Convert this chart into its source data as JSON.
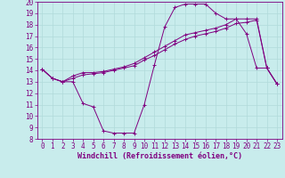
{
  "xlabel": "Windchill (Refroidissement éolien,°C)",
  "background_color": "#c8ecec",
  "line_color": "#800080",
  "xlim": [
    -0.5,
    23.5
  ],
  "ylim": [
    8,
    20
  ],
  "xticks": [
    0,
    1,
    2,
    3,
    4,
    5,
    6,
    7,
    8,
    9,
    10,
    11,
    12,
    13,
    14,
    15,
    16,
    17,
    18,
    19,
    20,
    21,
    22,
    23
  ],
  "yticks": [
    8,
    9,
    10,
    11,
    12,
    13,
    14,
    15,
    16,
    17,
    18,
    19,
    20
  ],
  "line1_x": [
    0,
    1,
    2,
    3,
    4,
    5,
    6,
    7,
    8,
    9,
    10,
    11,
    12,
    13,
    14,
    15,
    16,
    17,
    18,
    19,
    20,
    21,
    22,
    23
  ],
  "line1_y": [
    14.1,
    13.3,
    13.0,
    13.0,
    11.1,
    10.8,
    8.7,
    8.5,
    8.5,
    8.5,
    11.0,
    14.5,
    17.8,
    19.5,
    19.8,
    19.8,
    19.8,
    19.0,
    18.5,
    18.5,
    17.2,
    14.2,
    14.2,
    12.8
  ],
  "line2_x": [
    0,
    1,
    2,
    3,
    4,
    5,
    6,
    7,
    8,
    9,
    10,
    11,
    12,
    13,
    14,
    15,
    16,
    17,
    18,
    19,
    20,
    21,
    22,
    23
  ],
  "line2_y": [
    14.1,
    13.3,
    13.0,
    13.5,
    13.8,
    13.8,
    13.9,
    14.1,
    14.3,
    14.6,
    15.1,
    15.6,
    16.1,
    16.6,
    17.1,
    17.3,
    17.5,
    17.7,
    18.0,
    18.5,
    18.5,
    18.5,
    14.2,
    12.8
  ],
  "line3_x": [
    0,
    1,
    2,
    3,
    4,
    5,
    6,
    7,
    8,
    9,
    10,
    11,
    12,
    13,
    14,
    15,
    16,
    17,
    18,
    19,
    20,
    21,
    22,
    23
  ],
  "line3_y": [
    14.1,
    13.3,
    13.0,
    13.3,
    13.6,
    13.7,
    13.8,
    14.0,
    14.2,
    14.4,
    14.9,
    15.3,
    15.8,
    16.3,
    16.7,
    17.0,
    17.2,
    17.4,
    17.7,
    18.1,
    18.2,
    18.4,
    14.2,
    12.8
  ],
  "grid_color": "#b0dada",
  "tick_fontsize": 5.5,
  "xlabel_fontsize": 6.0
}
